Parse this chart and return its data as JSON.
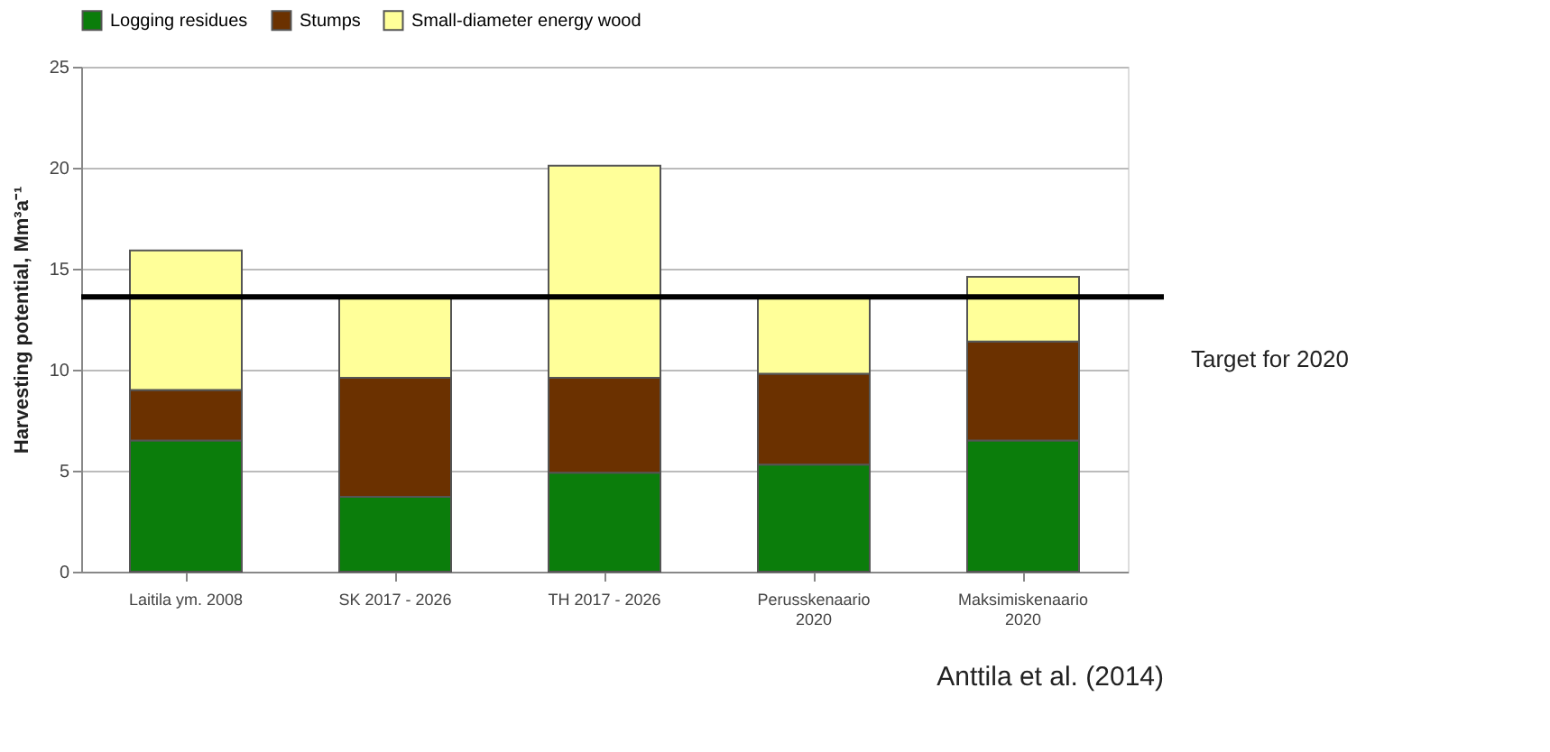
{
  "chart_data": {
    "type": "bar",
    "stacked": true,
    "ylabel": "Harvesting potential, Mm³a⁻¹",
    "categories": [
      "Laitila ym. 2008",
      "SK 2017 - 2026",
      "TH 2017 - 2026",
      "Perusskenaario\n2020",
      "Maksimiskenaario\n2020"
    ],
    "series": [
      {
        "name": "Logging residues",
        "color": "#0b7d0b",
        "values": [
          6.5,
          3.7,
          4.9,
          5.3,
          6.5
        ]
      },
      {
        "name": "Stumps",
        "color": "#6b3100",
        "values": [
          2.5,
          5.9,
          4.7,
          4.5,
          4.9
        ]
      },
      {
        "name": "Small-diameter energy wood",
        "color": "#ffff99",
        "values": [
          6.9,
          4.0,
          10.5,
          3.8,
          3.2
        ]
      }
    ],
    "ylim": [
      0,
      25
    ],
    "yticks": [
      0,
      5,
      10,
      15,
      20,
      25
    ],
    "grid": "y",
    "legend": "top",
    "ref_lines": [
      {
        "axis": "y",
        "value": 13.6,
        "label": "Target for 2020",
        "color": "#000000"
      }
    ],
    "annotations": [
      "Anttila et al. (2014)"
    ]
  }
}
